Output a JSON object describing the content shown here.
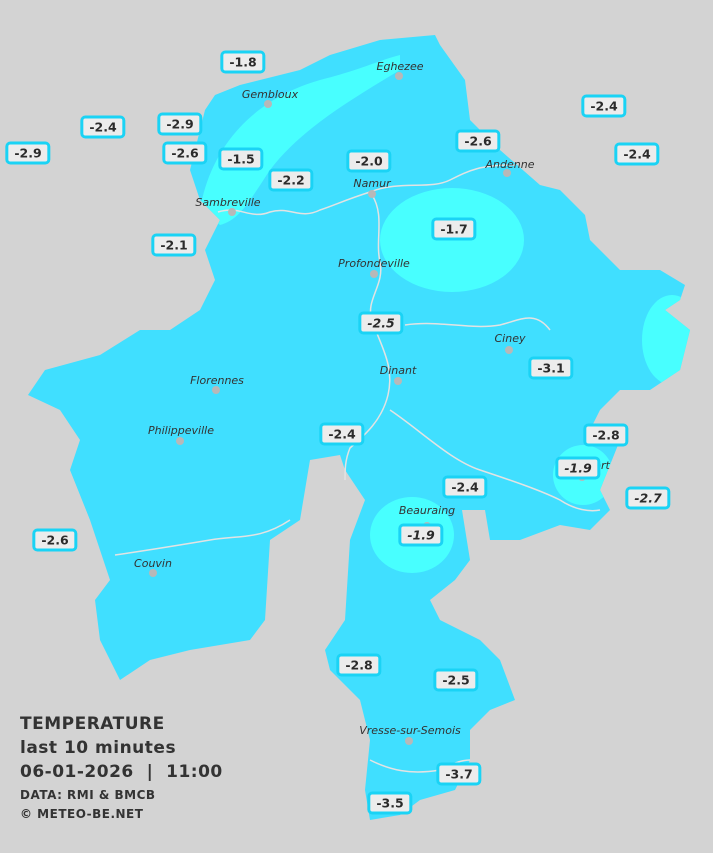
{
  "colors": {
    "background": "#d3d3d3",
    "zone_main": "#40dfff",
    "zone_warm": "#48ffff",
    "label_border": "#1ad3f5"
  },
  "legend": {
    "title": "TEMPERATURE",
    "subtitle": "last 10 minutes",
    "datetime": "06-01-2026  |  11:00",
    "source": "DATA: RMI & BMCB",
    "copyright": "© METEO-BE.NET"
  },
  "cities": [
    "Eghezee",
    "Gembloux",
    "Andenne",
    "Namur",
    "Sambreville",
    "Profondeville",
    "Ciney",
    "Dinant",
    "Florennes",
    "Philippeville",
    "Rochefort",
    "Beauraing",
    "Couvin",
    "Vresse-sur-Semois"
  ],
  "readings": [
    "-1.8",
    "-2.4",
    "-2.9",
    "-2.4",
    "-2.9",
    "-2.6",
    "-1.5",
    "-2.2",
    "-2.0",
    "-2.6",
    "-2.4",
    "-1.7",
    "-2.1",
    "-2.5",
    "-3.1",
    "-2.4",
    "-2.8",
    "-1.9",
    "-2.7",
    "-2.4",
    "-1.9",
    "-2.6",
    "-2.8",
    "-2.5",
    "-3.7",
    "-3.5"
  ]
}
